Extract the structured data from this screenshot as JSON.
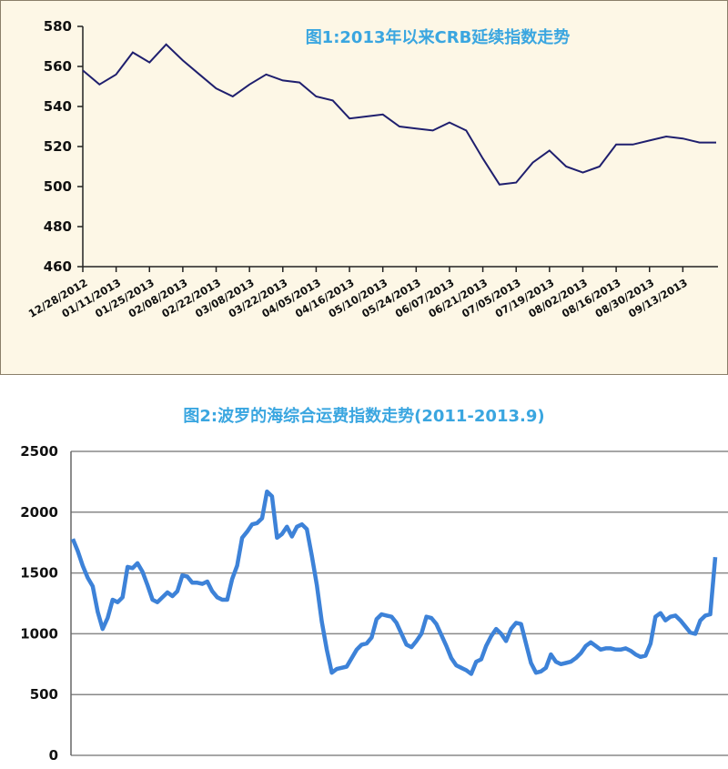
{
  "chart_data": [
    {
      "type": "line",
      "title": "图1:2013年以来CRB延续指数走势",
      "categories": [
        "12/28/2012",
        "01/11/2013",
        "01/25/2013",
        "02/08/2013",
        "02/22/2013",
        "03/08/2013",
        "03/22/2013",
        "04/05/2013",
        "04/16/2013",
        "05/10/2013",
        "05/24/2013",
        "06/07/2013",
        "06/21/2013",
        "07/05/2013",
        "07/19/2013",
        "08/02/2013",
        "08/16/2013",
        "08/30/2013",
        "09/13/2013"
      ],
      "x": [
        "12/28/2012",
        "01/04/2013",
        "01/11/2013",
        "01/18/2013",
        "01/25/2013",
        "02/01/2013",
        "02/08/2013",
        "02/15/2013",
        "02/22/2013",
        "03/01/2013",
        "03/08/2013",
        "03/15/2013",
        "03/22/2013",
        "03/29/2013",
        "04/05/2013",
        "04/12/2013",
        "04/19/2013",
        "04/26/2013",
        "05/03/2013",
        "05/10/2013",
        "05/17/2013",
        "05/24/2013",
        "05/31/2013",
        "06/07/2013",
        "06/14/2013",
        "06/21/2013",
        "06/28/2013",
        "07/05/2013",
        "07/12/2013",
        "07/19/2013",
        "07/26/2013",
        "08/02/2013",
        "08/09/2013",
        "08/16/2013",
        "08/23/2013",
        "08/30/2013",
        "09/06/2013",
        "09/13/2013",
        "09/20/2013"
      ],
      "series": [
        {
          "values": [
            558,
            551,
            556,
            567,
            562,
            571,
            563,
            556,
            549,
            545,
            551,
            556,
            553,
            552,
            545,
            543,
            534,
            535,
            536,
            530,
            529,
            528,
            532,
            528,
            514,
            501,
            502,
            512,
            518,
            510,
            507,
            510,
            521,
            521,
            523,
            525,
            524,
            522,
            522
          ]
        }
      ],
      "ylim": [
        460,
        580
      ],
      "yticks": [
        460,
        480,
        500,
        520,
        540,
        560,
        580
      ],
      "grid": false,
      "colors": {
        "line": "#1f1f6e",
        "background": "#fdf7e6"
      }
    },
    {
      "type": "line",
      "title": "图2:波罗的海综合运费指数走势(2011-2013.9)",
      "series": [
        {
          "values": [
            1780,
            1680,
            1560,
            1460,
            1390,
            1180,
            1040,
            1130,
            1280,
            1260,
            1300,
            1550,
            1540,
            1580,
            1510,
            1400,
            1280,
            1260,
            1300,
            1340,
            1310,
            1350,
            1480,
            1470,
            1420,
            1420,
            1410,
            1430,
            1350,
            1300,
            1280,
            1280,
            1450,
            1560,
            1790,
            1840,
            1900,
            1910,
            1950,
            2170,
            2130,
            1790,
            1820,
            1880,
            1800,
            1880,
            1900,
            1860,
            1640,
            1400,
            1100,
            870,
            680,
            710,
            720,
            730,
            800,
            870,
            910,
            920,
            970,
            1120,
            1160,
            1150,
            1140,
            1090,
            1000,
            910,
            890,
            940,
            1000,
            1140,
            1130,
            1080,
            990,
            900,
            800,
            740,
            720,
            700,
            670,
            770,
            790,
            900,
            980,
            1040,
            1000,
            940,
            1040,
            1090,
            1080,
            920,
            760,
            680,
            690,
            720,
            830,
            770,
            750,
            760,
            770,
            800,
            840,
            900,
            930,
            900,
            870,
            880,
            880,
            870,
            870,
            880,
            860,
            830,
            810,
            820,
            920,
            1140,
            1170,
            1110,
            1140,
            1150,
            1110,
            1060,
            1010,
            1000,
            1110,
            1150,
            1160,
            1630
          ]
        }
      ],
      "ylim": [
        0,
        2500
      ],
      "yticks": [
        0,
        500,
        1000,
        1500,
        2000,
        2500
      ],
      "grid": true,
      "colors": {
        "line": "#3d82d8",
        "grid": "#888888",
        "background": "#ffffff"
      }
    }
  ]
}
